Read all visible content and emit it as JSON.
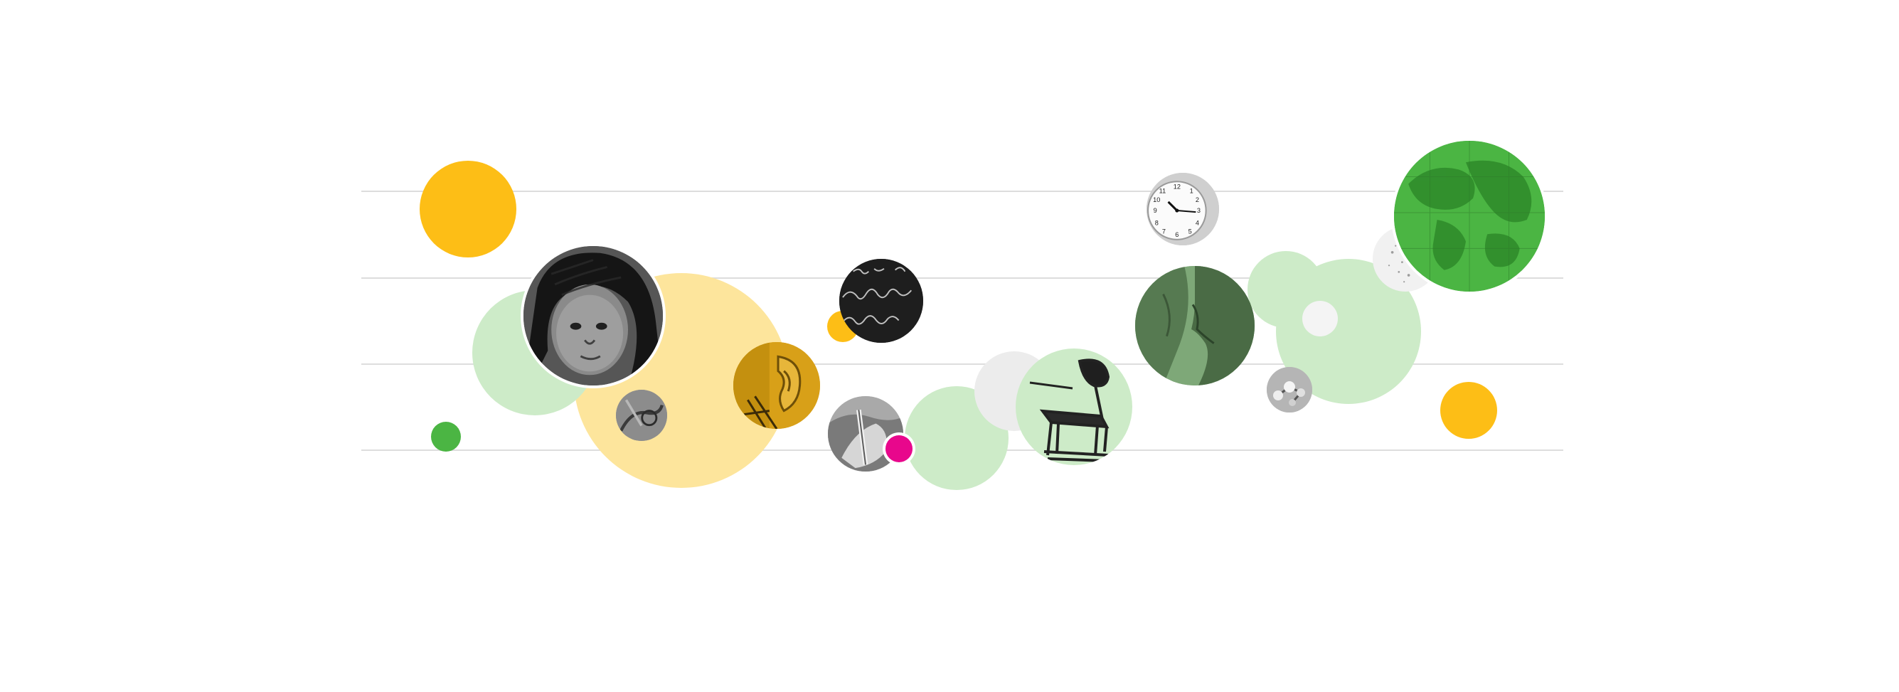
{
  "palette": {
    "yellow": "#fdbe16",
    "pale_yellow": "#fde59c",
    "green": "#4bb543",
    "pale_green": "#cdebc8",
    "magenta": "#e8078c",
    "rule_gray": "#dddddd",
    "dark_gray": "#2a2a2a"
  },
  "collage": {
    "rules_count": 4,
    "photos": [
      {
        "name": "girl-portrait-photo",
        "tint": "grayscale"
      },
      {
        "name": "hand-detail-photo",
        "tint": "grayscale"
      },
      {
        "name": "ear-photo",
        "tint": "yellow-duotone"
      },
      {
        "name": "chalkboard-photo",
        "tint": "grayscale"
      },
      {
        "name": "hands-pencil-photo",
        "tint": "grayscale"
      },
      {
        "name": "school-desk-photo",
        "tint": "pale-green"
      },
      {
        "name": "wall-clock-photo",
        "tint": "grayscale"
      },
      {
        "name": "whisper-photo",
        "tint": "green-duotone"
      },
      {
        "name": "molecule-model-photo",
        "tint": "grayscale"
      },
      {
        "name": "world-map-photo",
        "tint": "green"
      }
    ]
  }
}
